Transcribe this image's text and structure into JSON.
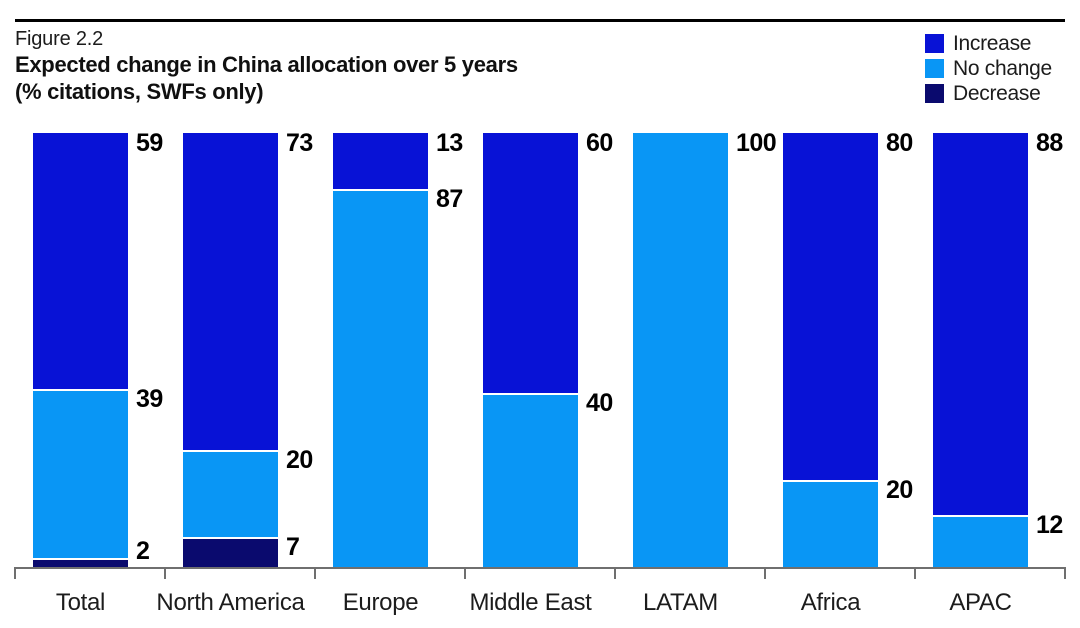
{
  "chart_data": {
    "type": "bar",
    "stacked": true,
    "unit": "%",
    "figure_label": "Figure 2.2",
    "title": "Expected change in China allocation over 5 years",
    "subtitle": "(% citations, SWFs only)",
    "categories": [
      "Total",
      "North America",
      "Europe",
      "Middle East",
      "LATAM",
      "Africa",
      "APAC"
    ],
    "series": [
      {
        "name": "Increase",
        "color": "#0812D6",
        "values": [
          59,
          73,
          13,
          60,
          0,
          80,
          88
        ]
      },
      {
        "name": "No change",
        "color": "#0996F5",
        "values": [
          39,
          20,
          87,
          40,
          100,
          20,
          12
        ]
      },
      {
        "name": "Decrease",
        "color": "#0A0A6E",
        "values": [
          2,
          7,
          0,
          0,
          0,
          0,
          0
        ]
      }
    ],
    "ylim": [
      0,
      100
    ],
    "grid": false,
    "legend_position": "top-right",
    "value_labels": true
  },
  "colors": {
    "top_rule": "#000000",
    "axis": "#6F6F6F",
    "text": "#1C1C1C",
    "value_label": "#000000",
    "background": "#FFFFFF"
  }
}
